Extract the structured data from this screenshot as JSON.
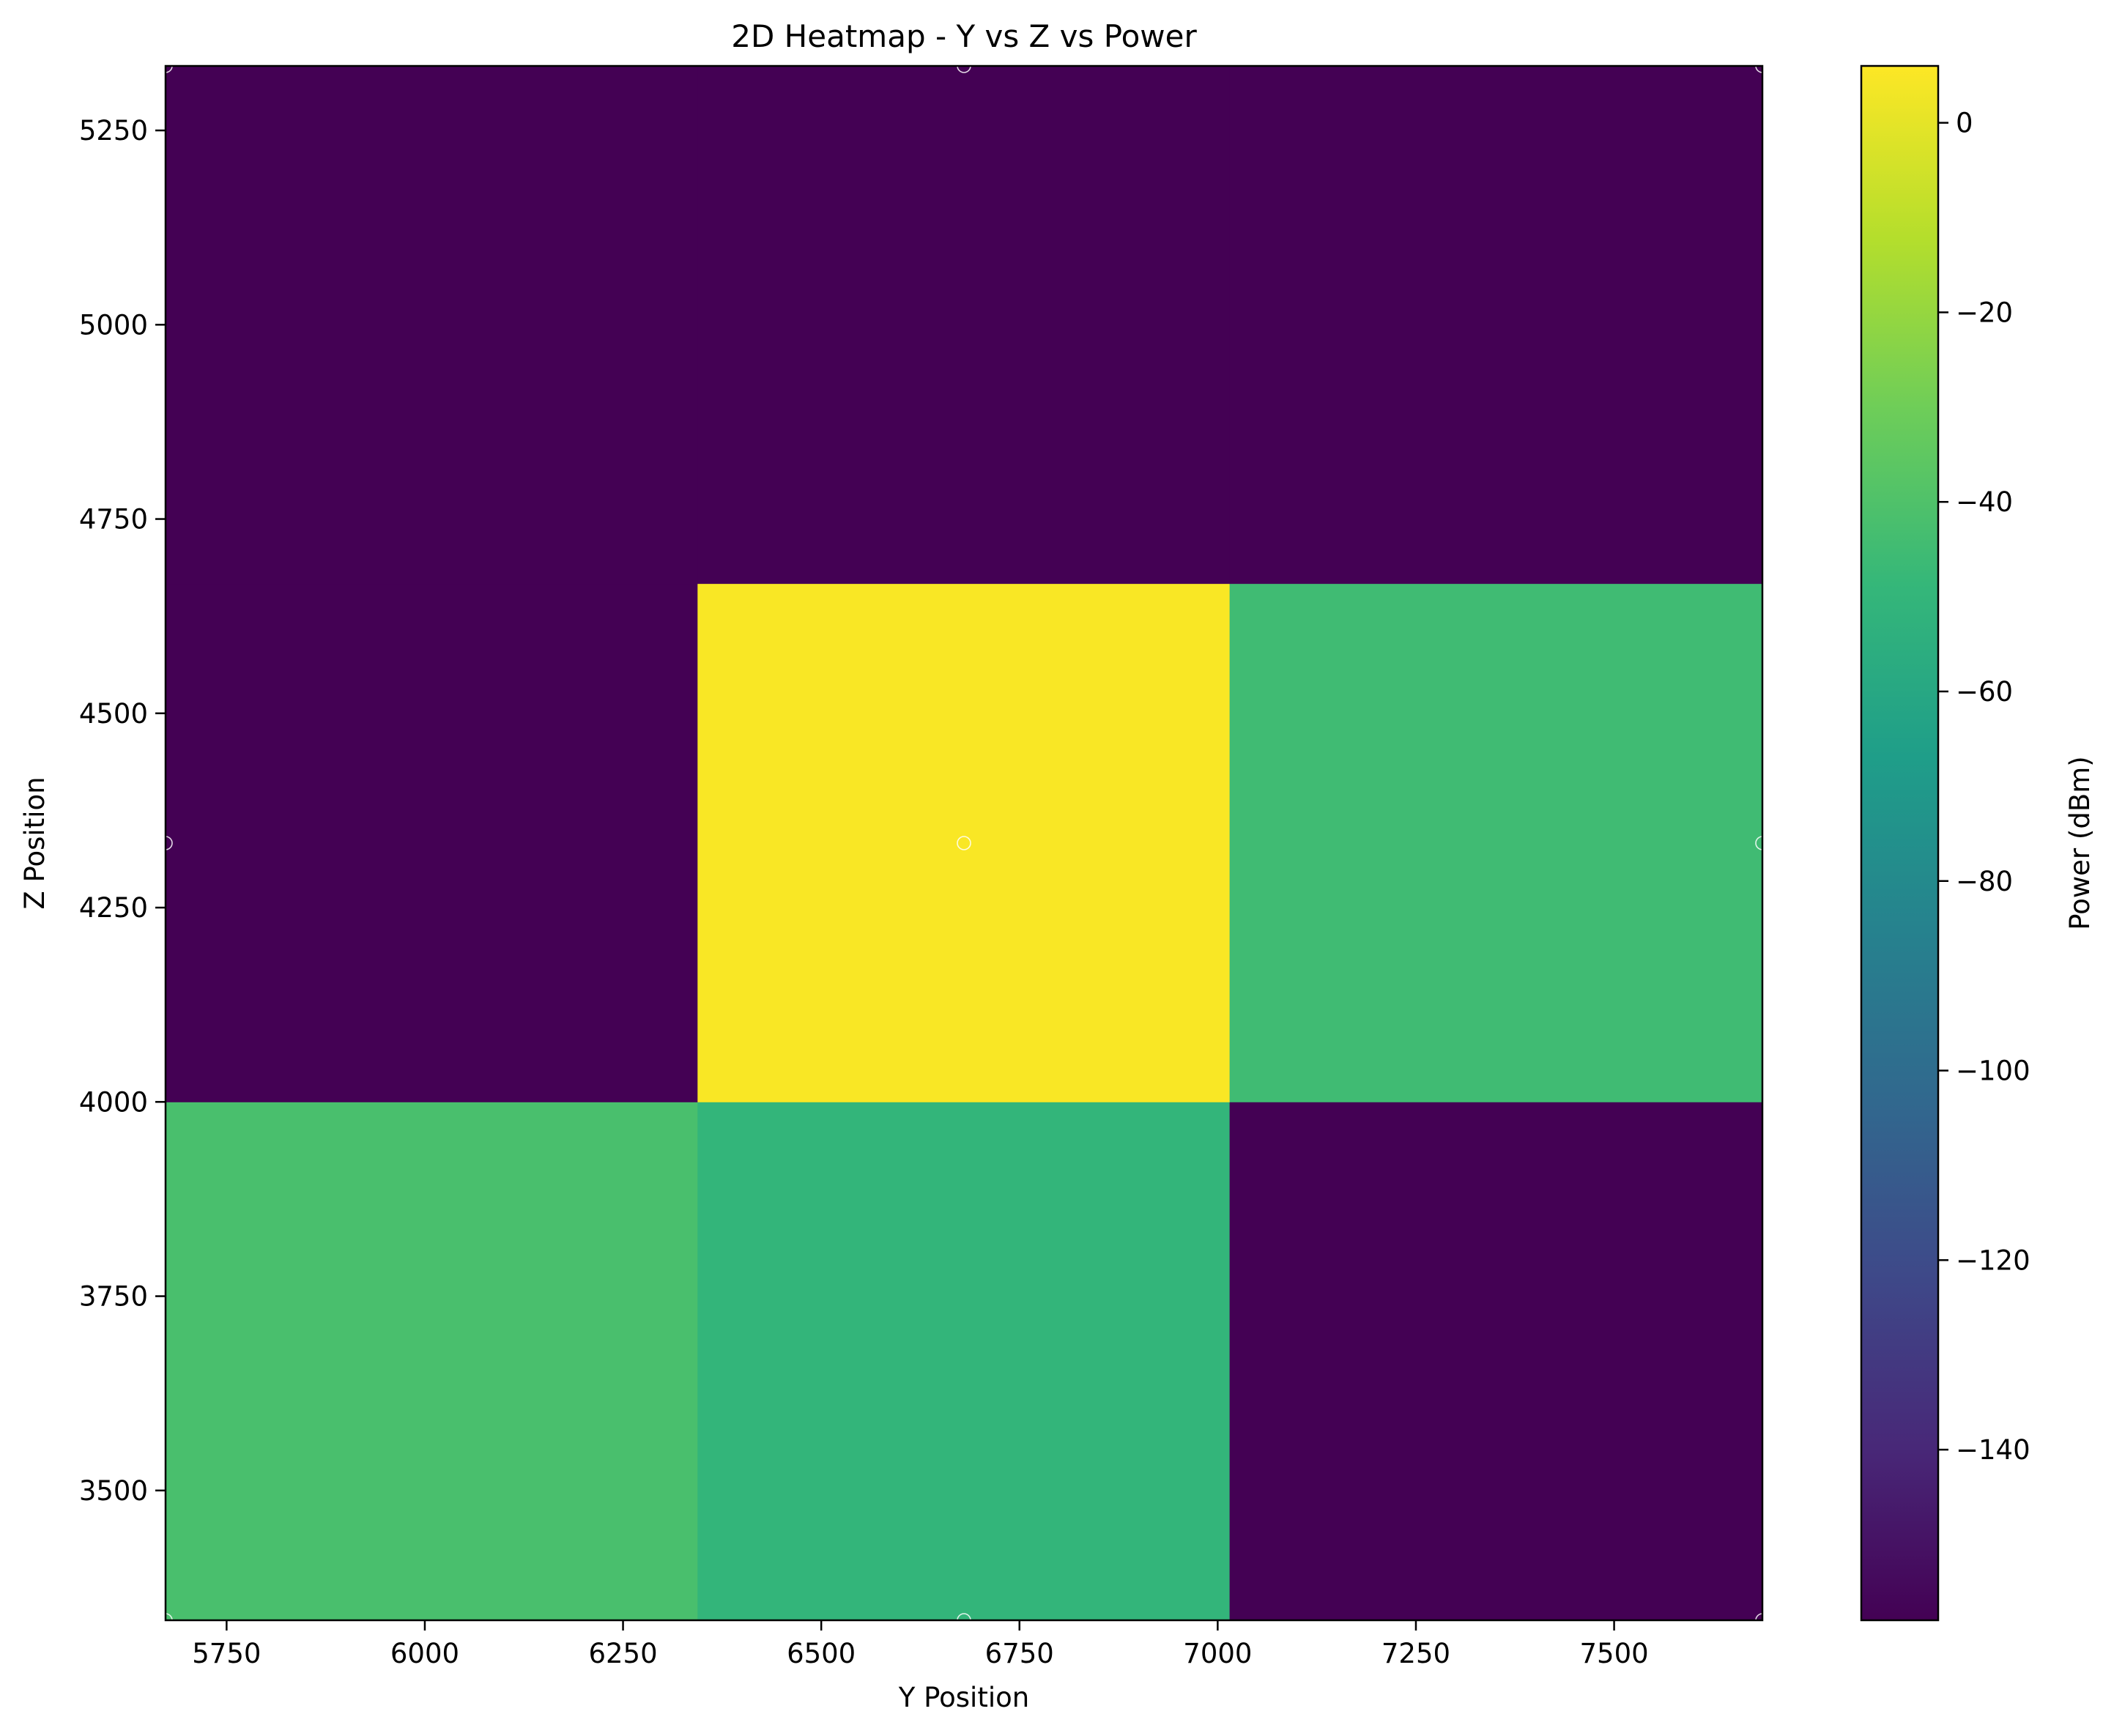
{
  "chart_data": {
    "type": "heatmap",
    "title": "2D Heatmap - Y vs Z vs Power",
    "xlabel": "Y Position",
    "ylabel": "Z Position",
    "xlim": [
      5673,
      7687
    ],
    "ylim": [
      3333,
      5333
    ],
    "xticks": [
      5750,
      6000,
      6250,
      6500,
      6750,
      7000,
      7250,
      7500
    ],
    "yticks": [
      3500,
      3750,
      4000,
      4250,
      4500,
      4750,
      5000,
      5250
    ],
    "x_edges": [
      5673,
      6344,
      7015,
      7687
    ],
    "y_edges": [
      3333,
      4000,
      4667,
      5333
    ],
    "sample_points": {
      "x": [
        5673,
        6680,
        7687
      ],
      "y": [
        3333,
        4333,
        5333
      ]
    },
    "cells": [
      [
        -42,
        -50,
        -158
      ],
      [
        -158,
        5,
        -45
      ],
      [
        -158,
        -158,
        -158
      ]
    ],
    "colorbar": {
      "label": "Power (dBm)",
      "range": [
        -158,
        6
      ],
      "ticks": [
        0,
        -20,
        -40,
        -60,
        -80,
        -100,
        -120,
        -140
      ],
      "colormap": "viridis"
    }
  }
}
